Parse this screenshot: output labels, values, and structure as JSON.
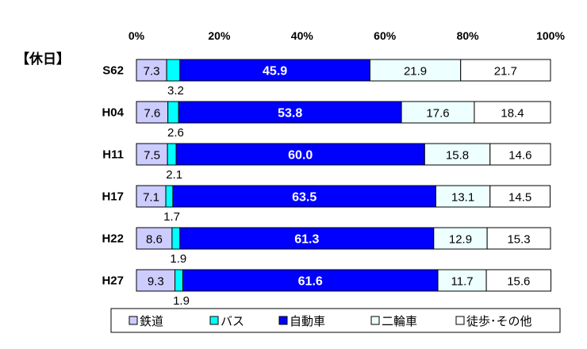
{
  "chart_data": {
    "type": "bar",
    "orientation": "horizontal",
    "stacked": "percent",
    "title": "【休日】",
    "categories": [
      "S62",
      "H04",
      "H11",
      "H17",
      "H22",
      "H27"
    ],
    "series": [
      {
        "name": "鉄道",
        "color": "#ccccff",
        "values": [
          7.3,
          7.6,
          7.5,
          7.1,
          8.6,
          9.3
        ]
      },
      {
        "name": "バス",
        "color": "#00ffff",
        "values": [
          3.2,
          2.6,
          2.1,
          1.7,
          1.9,
          1.9
        ]
      },
      {
        "name": "自動車",
        "color": "#0000ff",
        "values": [
          45.9,
          53.8,
          60.0,
          63.5,
          61.3,
          61.6
        ]
      },
      {
        "name": "二輪車",
        "color": "#eeffff",
        "values": [
          21.9,
          17.6,
          15.8,
          13.1,
          12.9,
          11.7
        ]
      },
      {
        "name": "徒歩･その他",
        "color": "#ffffff",
        "values": [
          21.7,
          18.4,
          14.6,
          14.5,
          15.3,
          15.6
        ]
      }
    ],
    "x_ticks": [
      "0%",
      "20%",
      "40%",
      "60%",
      "80%",
      "100%"
    ],
    "xlim": [
      0,
      100
    ],
    "legend": "bottom",
    "grid": false
  }
}
